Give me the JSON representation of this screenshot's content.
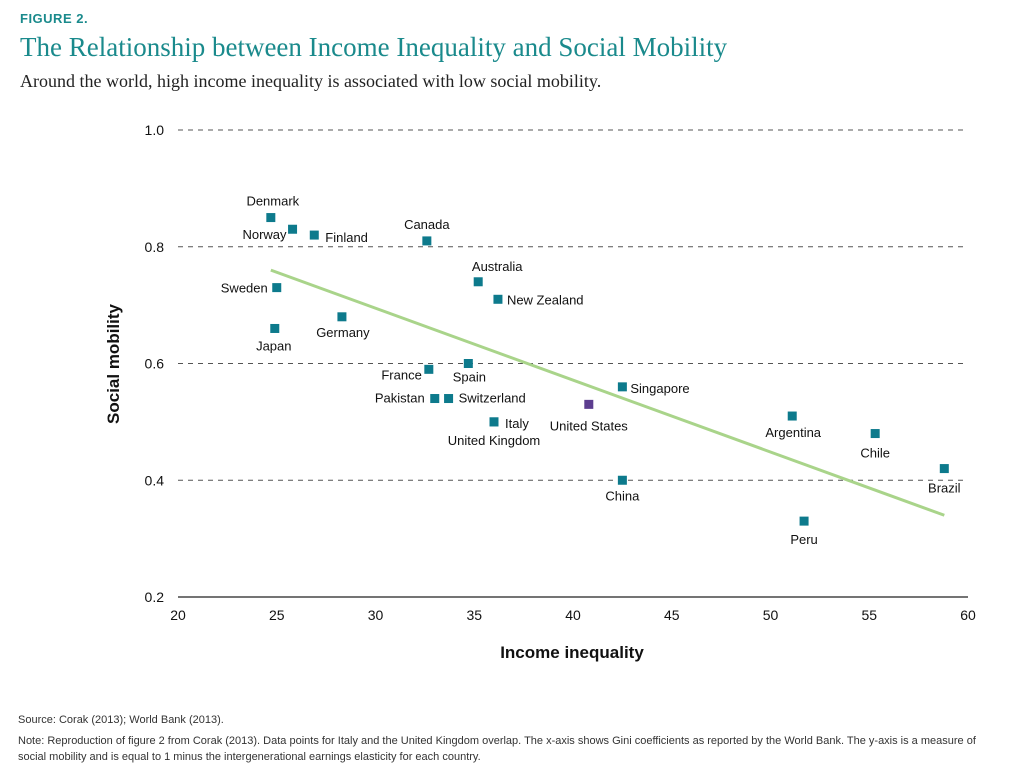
{
  "figure_label": "FIGURE 2.",
  "title": "The Relationship between Income Inequality and Social Mobility",
  "subtitle": "Around the world, high income inequality is associated with low social mobility.",
  "source": "Source: Corak (2013); World Bank (2013).",
  "note": "Note: Reproduction of figure 2 from Corak (2013). Data points for Italy and the United Kingdom overlap. The x-axis shows Gini coefficients as reported by the World Bank. The y-axis is a measure of social mobility and is equal to 1 minus the intergenerational earnings elasticity for each country.",
  "colors": {
    "title": "#1a8a8c",
    "point": "#0d7a8c",
    "highlight": "#5c3d8f",
    "trend": "#a9d48a",
    "grid": "#555555"
  },
  "chart_data": {
    "type": "scatter",
    "xlabel": "Income inequality",
    "ylabel": "Social mobility",
    "xlim": [
      20,
      60
    ],
    "ylim": [
      0.2,
      1.0
    ],
    "xticks": [
      "20",
      "25",
      "30",
      "35",
      "40",
      "45",
      "50",
      "55",
      "60"
    ],
    "yticks": [
      "0.2",
      "0.4",
      "0.6",
      "0.8",
      "1.0"
    ],
    "grid": "horizontal dashed",
    "trendline": {
      "x": [
        24.7,
        58.8
      ],
      "y": [
        0.76,
        0.34
      ]
    },
    "points": [
      {
        "label": "Denmark",
        "x": 24.7,
        "y": 0.85
      },
      {
        "label": "Norway",
        "x": 25.8,
        "y": 0.83
      },
      {
        "label": "Finland",
        "x": 26.9,
        "y": 0.82
      },
      {
        "label": "Canada",
        "x": 32.6,
        "y": 0.81
      },
      {
        "label": "Australia",
        "x": 35.2,
        "y": 0.74
      },
      {
        "label": "New Zealand",
        "x": 36.2,
        "y": 0.71
      },
      {
        "label": "Sweden",
        "x": 25.0,
        "y": 0.73
      },
      {
        "label": "Germany",
        "x": 28.3,
        "y": 0.68
      },
      {
        "label": "Japan",
        "x": 24.9,
        "y": 0.66
      },
      {
        "label": "France",
        "x": 32.7,
        "y": 0.59
      },
      {
        "label": "Spain",
        "x": 34.7,
        "y": 0.6
      },
      {
        "label": "Pakistan",
        "x": 33.0,
        "y": 0.54
      },
      {
        "label": "Switzerland",
        "x": 33.7,
        "y": 0.54
      },
      {
        "label": "Italy",
        "x": 36.0,
        "y": 0.5
      },
      {
        "label": "United Kingdom",
        "x": 36.0,
        "y": 0.5
      },
      {
        "label": "Singapore",
        "x": 42.5,
        "y": 0.56
      },
      {
        "label": "United States",
        "x": 40.8,
        "y": 0.53,
        "highlight": true
      },
      {
        "label": "China",
        "x": 42.5,
        "y": 0.4
      },
      {
        "label": "Argentina",
        "x": 51.1,
        "y": 0.51
      },
      {
        "label": "Chile",
        "x": 55.3,
        "y": 0.48
      },
      {
        "label": "Brazil",
        "x": 58.8,
        "y": 0.42
      },
      {
        "label": "Peru",
        "x": 51.7,
        "y": 0.33
      }
    ]
  }
}
